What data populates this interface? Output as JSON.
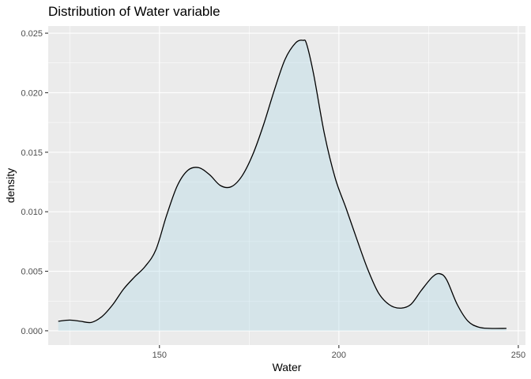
{
  "chart_data": {
    "type": "area",
    "title": "Distribution of Water variable",
    "xlabel": "Water",
    "ylabel": "density",
    "xlim": [
      119,
      252
    ],
    "ylim": [
      -0.0012,
      0.0256
    ],
    "x_ticks": [
      150,
      200,
      250
    ],
    "x_tick_labels": [
      "150",
      "200",
      "250"
    ],
    "y_ticks": [
      0.0,
      0.005,
      0.01,
      0.015,
      0.02,
      0.025
    ],
    "y_tick_labels": [
      "0.000",
      "0.005",
      "0.010",
      "0.015",
      "0.020",
      "0.025"
    ],
    "grid": true,
    "legend": "none",
    "fill_color": "#add8e6",
    "fill_opacity": 0.35,
    "line_color": "#000000",
    "panel_color": "#ebebeb",
    "series": [
      {
        "x": [
          121.8,
          125,
          128,
          131,
          134,
          137,
          140,
          143,
          146,
          149,
          152,
          155,
          158,
          161,
          164,
          167,
          170,
          173,
          176,
          179,
          182,
          185,
          188,
          190,
          191,
          193,
          196,
          199,
          202,
          205,
          208,
          211,
          214,
          217,
          220,
          223,
          226,
          228,
          230,
          233,
          236,
          239,
          242,
          246.7
        ],
        "y": [
          0.0008,
          0.0009,
          0.0008,
          0.0007,
          0.0012,
          0.0022,
          0.0035,
          0.0045,
          0.0054,
          0.0068,
          0.0097,
          0.0122,
          0.0135,
          0.0137,
          0.0131,
          0.0122,
          0.0121,
          0.013,
          0.0148,
          0.0173,
          0.0202,
          0.0228,
          0.0242,
          0.0244,
          0.0241,
          0.0215,
          0.0165,
          0.0128,
          0.0103,
          0.0077,
          0.0052,
          0.0032,
          0.0022,
          0.0019,
          0.0022,
          0.0034,
          0.0045,
          0.0048,
          0.0043,
          0.0022,
          0.0008,
          0.0003,
          0.0002,
          0.0002
        ]
      }
    ]
  }
}
